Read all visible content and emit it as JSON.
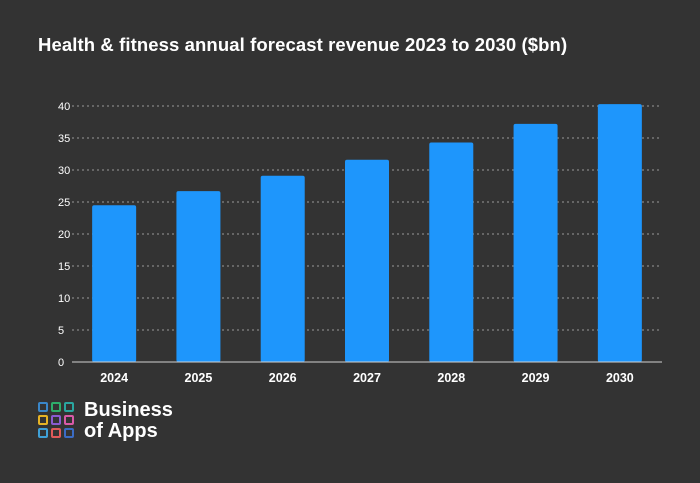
{
  "chart_data": {
    "type": "bar",
    "title": "Health & fitness annual forecast revenue 2023 to 2030 ($bn)",
    "categories": [
      "2024",
      "2025",
      "2026",
      "2027",
      "2028",
      "2029",
      "2030"
    ],
    "values": [
      24.5,
      26.7,
      29.1,
      31.6,
      34.3,
      37.2,
      40.3
    ],
    "xlabel": "",
    "ylabel": "",
    "ylim": [
      0,
      40
    ],
    "yticks": [
      "0",
      "5",
      "10",
      "15",
      "20",
      "25",
      "30",
      "35",
      "40"
    ],
    "grid": true,
    "bar_color": "#1E96FC",
    "grid_color": "#9A9A9A",
    "background": "#333333"
  },
  "logo": {
    "line1": "Business",
    "line2": "of Apps",
    "cell_colors": [
      "#3A86C8",
      "#2EAE6B",
      "#2AA6A0",
      "#E6B325",
      "#8A5BD0",
      "#D95AA8",
      "#3FA0D6",
      "#E05A5A",
      "#3B6CC4"
    ]
  }
}
